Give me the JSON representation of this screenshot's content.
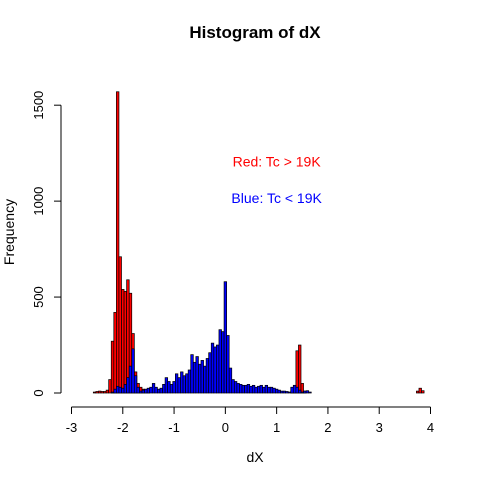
{
  "chart_data": {
    "type": "bar",
    "title": "Histogram of dX",
    "xlabel": "dX",
    "ylabel": "Frequency",
    "xlim": [
      -3,
      4
    ],
    "ylim": [
      0,
      1600
    ],
    "x_ticks": [
      -3,
      -2,
      -1,
      0,
      1,
      2,
      3,
      4
    ],
    "y_ticks": [
      0,
      500,
      1000,
      1500
    ],
    "bin_width": 0.05,
    "colors": {
      "red": "#ff0000",
      "blue": "#0000ff",
      "outline": "#000000"
    },
    "annotations": [
      {
        "text": "Red: Tc > 19K",
        "color": "#ff0000",
        "x": 1.0,
        "y": 1180
      },
      {
        "text": "Blue: Tc < 19K",
        "color": "#0000ff",
        "x": 1.0,
        "y": 990
      }
    ],
    "series": [
      {
        "color": "red",
        "bars": [
          {
            "x": -2.55,
            "y": 5
          },
          {
            "x": -2.5,
            "y": 8
          },
          {
            "x": -2.45,
            "y": 10
          },
          {
            "x": -2.4,
            "y": 8
          },
          {
            "x": -2.35,
            "y": 8
          },
          {
            "x": -2.3,
            "y": 15
          },
          {
            "x": -2.25,
            "y": 70
          },
          {
            "x": -2.2,
            "y": 270
          },
          {
            "x": -2.15,
            "y": 420
          },
          {
            "x": -2.1,
            "y": 1570
          },
          {
            "x": -2.05,
            "y": 710
          },
          {
            "x": -2.0,
            "y": 540
          },
          {
            "x": -1.95,
            "y": 530
          },
          {
            "x": -1.9,
            "y": 590
          },
          {
            "x": -1.85,
            "y": 520
          },
          {
            "x": -1.8,
            "y": 310
          },
          {
            "x": -1.75,
            "y": 110
          },
          {
            "x": -1.7,
            "y": 50
          },
          {
            "x": -1.65,
            "y": 30
          },
          {
            "x": -1.6,
            "y": 20
          },
          {
            "x": -1.55,
            "y": 15
          },
          {
            "x": -1.5,
            "y": 10
          },
          {
            "x": 1.3,
            "y": 10
          },
          {
            "x": 1.35,
            "y": 40
          },
          {
            "x": 1.4,
            "y": 220
          },
          {
            "x": 1.45,
            "y": 250
          },
          {
            "x": 1.5,
            "y": 50
          },
          {
            "x": 1.55,
            "y": 10
          },
          {
            "x": 3.75,
            "y": 10
          },
          {
            "x": 3.8,
            "y": 25
          },
          {
            "x": 3.85,
            "y": 12
          }
        ]
      },
      {
        "color": "blue",
        "bars": [
          {
            "x": -2.2,
            "y": 5
          },
          {
            "x": -2.15,
            "y": 20
          },
          {
            "x": -2.1,
            "y": 35
          },
          {
            "x": -2.05,
            "y": 30
          },
          {
            "x": -2.0,
            "y": 25
          },
          {
            "x": -1.95,
            "y": 45
          },
          {
            "x": -1.9,
            "y": 80
          },
          {
            "x": -1.85,
            "y": 140
          },
          {
            "x": -1.8,
            "y": 230
          },
          {
            "x": -1.75,
            "y": 90
          },
          {
            "x": -1.7,
            "y": 30
          },
          {
            "x": -1.65,
            "y": 10
          },
          {
            "x": -1.6,
            "y": 15
          },
          {
            "x": -1.55,
            "y": 20
          },
          {
            "x": -1.5,
            "y": 25
          },
          {
            "x": -1.45,
            "y": 30
          },
          {
            "x": -1.4,
            "y": 50
          },
          {
            "x": -1.35,
            "y": 30
          },
          {
            "x": -1.3,
            "y": 20
          },
          {
            "x": -1.25,
            "y": 25
          },
          {
            "x": -1.2,
            "y": 45
          },
          {
            "x": -1.15,
            "y": 80
          },
          {
            "x": -1.1,
            "y": 60
          },
          {
            "x": -1.05,
            "y": 45
          },
          {
            "x": -1.0,
            "y": 60
          },
          {
            "x": -0.95,
            "y": 100
          },
          {
            "x": -0.9,
            "y": 80
          },
          {
            "x": -0.85,
            "y": 110
          },
          {
            "x": -0.8,
            "y": 90
          },
          {
            "x": -0.75,
            "y": 100
          },
          {
            "x": -0.7,
            "y": 120
          },
          {
            "x": -0.65,
            "y": 200
          },
          {
            "x": -0.6,
            "y": 160
          },
          {
            "x": -0.55,
            "y": 190
          },
          {
            "x": -0.5,
            "y": 150
          },
          {
            "x": -0.45,
            "y": 170
          },
          {
            "x": -0.4,
            "y": 140
          },
          {
            "x": -0.35,
            "y": 180
          },
          {
            "x": -0.3,
            "y": 210
          },
          {
            "x": -0.25,
            "y": 260
          },
          {
            "x": -0.2,
            "y": 240
          },
          {
            "x": -0.15,
            "y": 250
          },
          {
            "x": -0.1,
            "y": 330
          },
          {
            "x": -0.05,
            "y": 320
          },
          {
            "x": 0.0,
            "y": 580
          },
          {
            "x": 0.05,
            "y": 300
          },
          {
            "x": 0.1,
            "y": 130
          },
          {
            "x": 0.15,
            "y": 70
          },
          {
            "x": 0.2,
            "y": 60
          },
          {
            "x": 0.25,
            "y": 50
          },
          {
            "x": 0.3,
            "y": 45
          },
          {
            "x": 0.35,
            "y": 40
          },
          {
            "x": 0.4,
            "y": 40
          },
          {
            "x": 0.45,
            "y": 45
          },
          {
            "x": 0.5,
            "y": 35
          },
          {
            "x": 0.55,
            "y": 40
          },
          {
            "x": 0.6,
            "y": 30
          },
          {
            "x": 0.65,
            "y": 35
          },
          {
            "x": 0.7,
            "y": 40
          },
          {
            "x": 0.75,
            "y": 30
          },
          {
            "x": 0.8,
            "y": 40
          },
          {
            "x": 0.85,
            "y": 30
          },
          {
            "x": 0.9,
            "y": 30
          },
          {
            "x": 0.95,
            "y": 25
          },
          {
            "x": 1.0,
            "y": 20
          },
          {
            "x": 1.05,
            "y": 15
          },
          {
            "x": 1.1,
            "y": 10
          },
          {
            "x": 1.15,
            "y": 10
          },
          {
            "x": 1.2,
            "y": 8
          },
          {
            "x": 1.25,
            "y": 5
          },
          {
            "x": 1.3,
            "y": 30
          },
          {
            "x": 1.35,
            "y": 40
          },
          {
            "x": 1.4,
            "y": 30
          },
          {
            "x": 1.45,
            "y": 15
          },
          {
            "x": 1.5,
            "y": 5
          },
          {
            "x": 1.55,
            "y": 10
          },
          {
            "x": 1.6,
            "y": 12
          },
          {
            "x": 1.65,
            "y": 5
          }
        ]
      }
    ]
  }
}
